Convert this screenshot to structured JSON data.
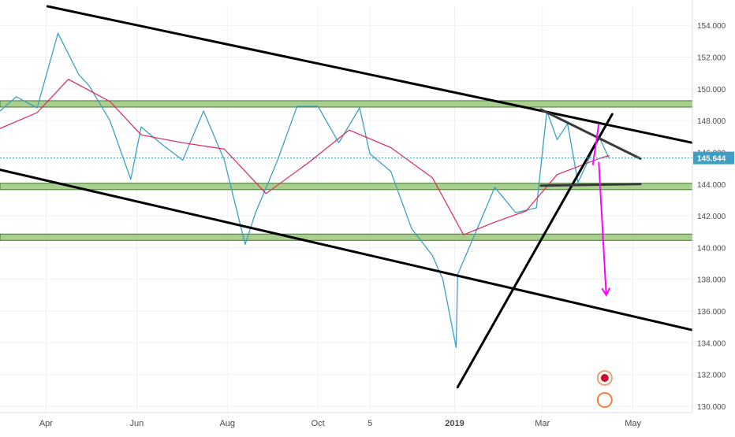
{
  "chart_data": {
    "type": "line",
    "title": "",
    "xlabel": "",
    "ylabel": "",
    "ylim": [
      129.6,
      155.2
    ],
    "x_ticks": [
      "Apr",
      "Jun",
      "Aug",
      "Oct",
      "5",
      "2019",
      "Mar",
      "May"
    ],
    "y_ticks": [
      "154.000",
      "152.000",
      "150.000",
      "148.000",
      "146.000",
      "144.000",
      "142.000",
      "140.000",
      "138.000",
      "136.000",
      "134.000",
      "132.000",
      "130.000"
    ],
    "last_price": "145.644",
    "grid": true,
    "series": [
      {
        "name": "",
        "color": "#3d9fc6",
        "x": [
          "2018-03-01",
          "2018-03-12",
          "2018-03-26",
          "2018-04-09",
          "2018-04-23",
          "2018-04-30",
          "2018-05-14",
          "2018-05-28",
          "2018-06-04",
          "2018-06-18",
          "2018-07-02",
          "2018-07-16",
          "2018-07-30",
          "2018-08-13",
          "2018-08-20",
          "2018-09-03",
          "2018-09-17",
          "2018-10-01",
          "2018-10-15",
          "2018-10-29",
          "2018-11-05",
          "2018-11-19",
          "2018-12-03",
          "2018-12-17",
          "2018-12-24",
          "2019-01-02",
          "2019-01-03",
          "2019-01-14",
          "2019-01-28",
          "2019-02-11",
          "2019-02-25",
          "2019-03-04",
          "2019-03-11",
          "2019-03-18",
          "2019-03-25",
          "2019-04-01",
          "2019-04-08",
          "2019-04-15"
        ],
        "y": [
          148.6,
          149.5,
          148.8,
          153.5,
          150.9,
          150.2,
          148.0,
          144.3,
          147.6,
          146.5,
          145.5,
          148.6,
          145.5,
          140.2,
          142.2,
          145.3,
          148.9,
          148.9,
          146.6,
          148.8,
          145.9,
          144.8,
          141.2,
          139.5,
          138.0,
          133.7,
          138.3,
          140.7,
          143.8,
          142.2,
          142.5,
          148.6,
          146.8,
          147.8,
          144.1,
          145.5,
          147.0,
          145.6
        ]
      },
      {
        "name": "",
        "color": "#e0245e",
        "x": [
          "2018-03-01",
          "2018-03-26",
          "2018-04-16",
          "2018-05-14",
          "2018-06-04",
          "2018-07-02",
          "2018-07-30",
          "2018-08-27",
          "2018-09-24",
          "2018-10-22",
          "2018-11-19",
          "2018-12-17",
          "2019-01-07",
          "2019-01-28",
          "2019-02-18",
          "2019-03-11",
          "2019-04-08",
          "2019-04-15"
        ],
        "y": [
          147.5,
          148.5,
          150.6,
          149.2,
          147.1,
          146.6,
          146.2,
          143.4,
          145.3,
          147.4,
          146.3,
          144.4,
          140.8,
          141.6,
          142.3,
          144.6,
          145.6,
          145.8
        ]
      }
    ],
    "zones": [
      {
        "y1": 148.85,
        "y2": 149.25,
        "color": "#a9cf8f"
      },
      {
        "y1": 143.65,
        "y2": 144.05,
        "color": "#a9cf8f"
      },
      {
        "y1": 140.45,
        "y2": 140.85,
        "color": "#a9cf8f"
      }
    ],
    "trendlines": [
      {
        "x1": "2018-04-02",
        "y1": 155.2,
        "x2": "2019-06-10",
        "y2": 146.6,
        "color": "#000000"
      },
      {
        "x1": "2018-03-01",
        "y1": 144.9,
        "x2": "2019-06-10",
        "y2": 134.8,
        "color": "#000000"
      },
      {
        "x1": "2019-01-03",
        "y1": 131.2,
        "x2": "2019-04-17",
        "y2": 148.4,
        "color": "#000000"
      },
      {
        "x1": "2019-02-28",
        "y1": 148.7,
        "x2": "2019-05-06",
        "y2": 145.6,
        "color": "#3a3a3a"
      },
      {
        "x1": "2019-02-28",
        "y1": 143.9,
        "x2": "2019-05-06",
        "y2": 144.0,
        "color": "#3a3a3a"
      }
    ],
    "annotations": [
      {
        "kind": "arrow",
        "x1": "2019-04-08",
        "y1": 145.4,
        "x2": "2019-04-13",
        "y2": 137.0,
        "color": "#ff00ff"
      },
      {
        "kind": "line",
        "x1": "2019-04-04",
        "y1": 145.2,
        "x2": "2019-04-08",
        "y2": 147.8,
        "color": "#ff00ff"
      }
    ]
  },
  "colors": {
    "grid": "#eef1f4",
    "axis_text": "#4a4a4a",
    "price_label_bg": "#3d9fc6",
    "price_line": "#3d9fc6",
    "zone_fill": "#a9cf8f",
    "zone_stroke": "#3c7a2c"
  }
}
